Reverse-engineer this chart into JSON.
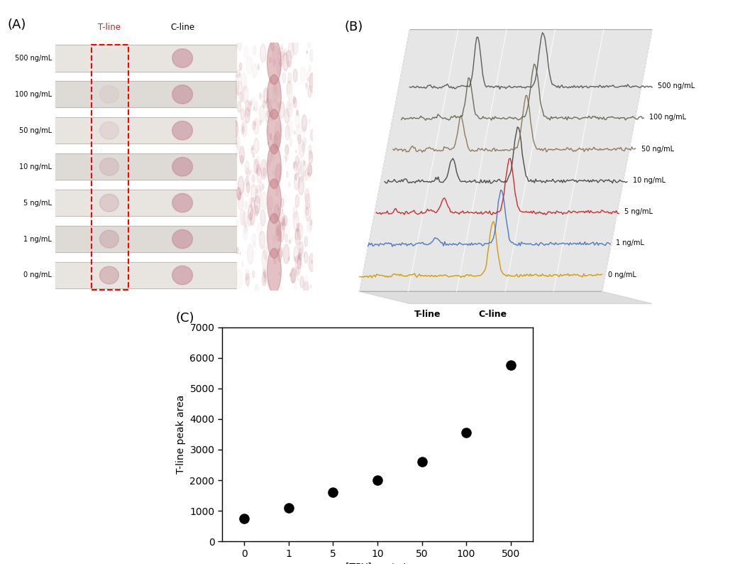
{
  "panel_A_label": "(A)",
  "panel_B_label": "(B)",
  "panel_C_label": "(C)",
  "concentrations_top_to_bottom": [
    "500 ng/mL",
    "100 ng/mL",
    "50 ng/mL",
    "10 ng/mL",
    "5 ng/mL",
    "1 ng/mL",
    "0 ng/mL"
  ],
  "concentrations_back_to_front": [
    "500 ng/mL",
    "100 ng/mL",
    "50 ng/mL",
    "10 ng/mL",
    "5 ng/mL",
    "1 ng/mL",
    "0 ng/mL"
  ],
  "scatter_x_labels": [
    "0",
    "1",
    "5",
    "10",
    "50",
    "100",
    "500"
  ],
  "scatter_y": [
    750,
    1100,
    1600,
    2000,
    2600,
    3550,
    5750
  ],
  "scatter_xlabel": "[TRY], ng/mL",
  "scatter_ylabel": "T-line peak area",
  "scatter_ylim": [
    0,
    7000
  ],
  "scatter_yticks": [
    0,
    1000,
    2000,
    3000,
    4000,
    5000,
    6000,
    7000
  ],
  "background_color": "#ffffff",
  "line_colors_ordered": [
    "#555555",
    "#666655",
    "#8b7355",
    "#444444",
    "#cc2222",
    "#4472c4",
    "#cc9900"
  ],
  "tline_label": "T-line",
  "cline_label": "C-line",
  "strip_bg_color": "#dedad5",
  "strip_line_color": "#c8c4c0",
  "dot_color": "#c09090",
  "tline_header_color": "#cc2222",
  "red_rect_color": "red"
}
